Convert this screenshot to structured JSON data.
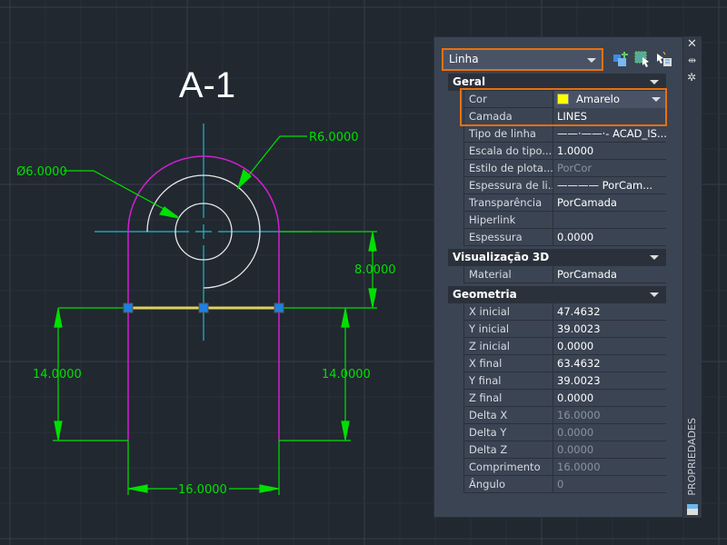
{
  "drawing": {
    "title": "A-1",
    "dims": {
      "radius": "R6.0000",
      "diameter": "Ø6.0000",
      "vertical_top": "8.0000",
      "left": "14.0000",
      "right": "14.0000",
      "bottom": "16.0000"
    }
  },
  "colors": {
    "accent": "#e8700f",
    "dimension": "#00e000",
    "profile": "#d020d0",
    "centerline": "#20b8c8",
    "circle": "#e8e8e8",
    "selected": "#e0d060",
    "grip": "#1e7fe0"
  },
  "panel": {
    "object_type": "Linha",
    "toolbar": [
      "quick-select-icon",
      "select-objects-icon",
      "toggle-pickadd-icon"
    ],
    "strip_icons": [
      "close-icon",
      "auto-hide-icon",
      "properties-settings-icon",
      "panel-icon"
    ],
    "strip_title": "PROPRIEDADES",
    "sections": [
      {
        "title": "Geral",
        "rows": [
          {
            "k": "Cor",
            "v": "Amarelo"
          },
          {
            "k": "Camada",
            "v": "LINES"
          },
          {
            "k": "Tipo de linha",
            "v": "——·——·- ACAD_IS..."
          },
          {
            "k": "Escala do tipo...",
            "v": "1.0000"
          },
          {
            "k": "Estilo de plota...",
            "v": "PorCor",
            "dim": true
          },
          {
            "k": "Espessura de li...",
            "v": "———— PorCam..."
          },
          {
            "k": "Transparência",
            "v": "PorCamada"
          },
          {
            "k": "Hiperlink",
            "v": ""
          },
          {
            "k": "Espessura",
            "v": "0.0000"
          }
        ]
      },
      {
        "title": "Visualização 3D",
        "rows": [
          {
            "k": "Material",
            "v": "PorCamada"
          }
        ]
      },
      {
        "title": "Geometria",
        "rows": [
          {
            "k": "X inicial",
            "v": "47.4632"
          },
          {
            "k": "Y inicial",
            "v": "39.0023"
          },
          {
            "k": "Z inicial",
            "v": "0.0000"
          },
          {
            "k": "X final",
            "v": "63.4632"
          },
          {
            "k": "Y final",
            "v": "39.0023"
          },
          {
            "k": "Z final",
            "v": "0.0000"
          },
          {
            "k": "Delta X",
            "v": "16.0000",
            "dim": true
          },
          {
            "k": "Delta Y",
            "v": "0.0000",
            "dim": true
          },
          {
            "k": "Delta Z",
            "v": "0.0000",
            "dim": true
          },
          {
            "k": "Comprimento",
            "v": "16.0000",
            "dim": true
          },
          {
            "k": "Ângulo",
            "v": "0",
            "dim": true
          }
        ]
      }
    ]
  }
}
